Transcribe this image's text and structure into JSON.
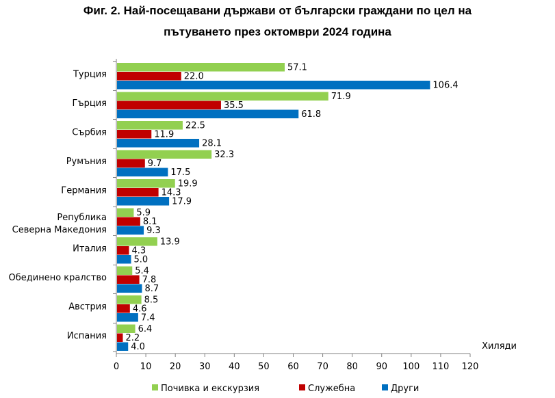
{
  "title_line1": "Фиг. 2. Най-посещавани държави от български граждани по цел на",
  "title_line2": "пътуването през октомври 2024 година",
  "chart_data": {
    "type": "bar",
    "orientation": "horizontal",
    "categories": [
      "Турция",
      "Гърция",
      "Сърбия",
      "Румъния",
      "Германия",
      [
        "Република",
        "Северна Македония"
      ],
      "Италия",
      "Обединено кралство",
      "Австрия",
      "Испания"
    ],
    "series": [
      {
        "name": "Почивка и екскурзия",
        "color": "#92d050",
        "values": [
          57.1,
          71.9,
          22.5,
          32.3,
          19.9,
          5.9,
          13.9,
          5.4,
          8.5,
          6.4
        ]
      },
      {
        "name": "Служебна",
        "color": "#c00000",
        "values": [
          22.0,
          35.5,
          11.9,
          9.7,
          14.3,
          8.1,
          4.3,
          7.8,
          4.6,
          2.2
        ]
      },
      {
        "name": "Други",
        "color": "#0070c0",
        "values": [
          106.4,
          61.8,
          28.1,
          17.5,
          17.9,
          9.3,
          5.0,
          8.7,
          7.4,
          4.0
        ]
      }
    ],
    "xlim": [
      0,
      120
    ],
    "xticks": [
      0,
      10,
      20,
      30,
      40,
      50,
      60,
      70,
      80,
      90,
      100,
      110,
      120
    ],
    "unit_label": "Хиляди",
    "legend_position": "bottom",
    "grid": false
  }
}
